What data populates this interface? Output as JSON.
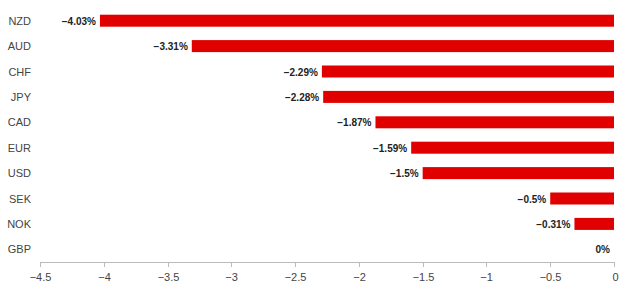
{
  "chart_data": {
    "type": "bar",
    "orientation": "horizontal",
    "categories": [
      "NZD",
      "AUD",
      "CHF",
      "JPY",
      "CAD",
      "EUR",
      "USD",
      "SEK",
      "NOK",
      "GBP"
    ],
    "values": [
      -4.03,
      -3.31,
      -2.29,
      -2.28,
      -1.87,
      -1.59,
      -1.5,
      -0.5,
      -0.31,
      0
    ],
    "value_labels": [
      "−4.03%",
      "−3.31%",
      "−2.29%",
      "−2.28%",
      "−1.87%",
      "−1.59%",
      "−1.5%",
      "−0.5%",
      "−0.31%",
      "0%"
    ],
    "color": "#e00000",
    "xlim": [
      -4.5,
      0
    ],
    "xticks": [
      {
        "value": -4.5,
        "label": "−4.5"
      },
      {
        "value": -4,
        "label": "−4"
      },
      {
        "value": -3.5,
        "label": "−3.5"
      },
      {
        "value": -3,
        "label": "−3"
      },
      {
        "value": -2.5,
        "label": "−2.5"
      },
      {
        "value": -2,
        "label": "−2"
      },
      {
        "value": -1.5,
        "label": "−1.5"
      },
      {
        "value": -1,
        "label": "−1"
      },
      {
        "value": -0.5,
        "label": "−0.5"
      },
      0
    ],
    "grid": false,
    "data_labels": true
  }
}
